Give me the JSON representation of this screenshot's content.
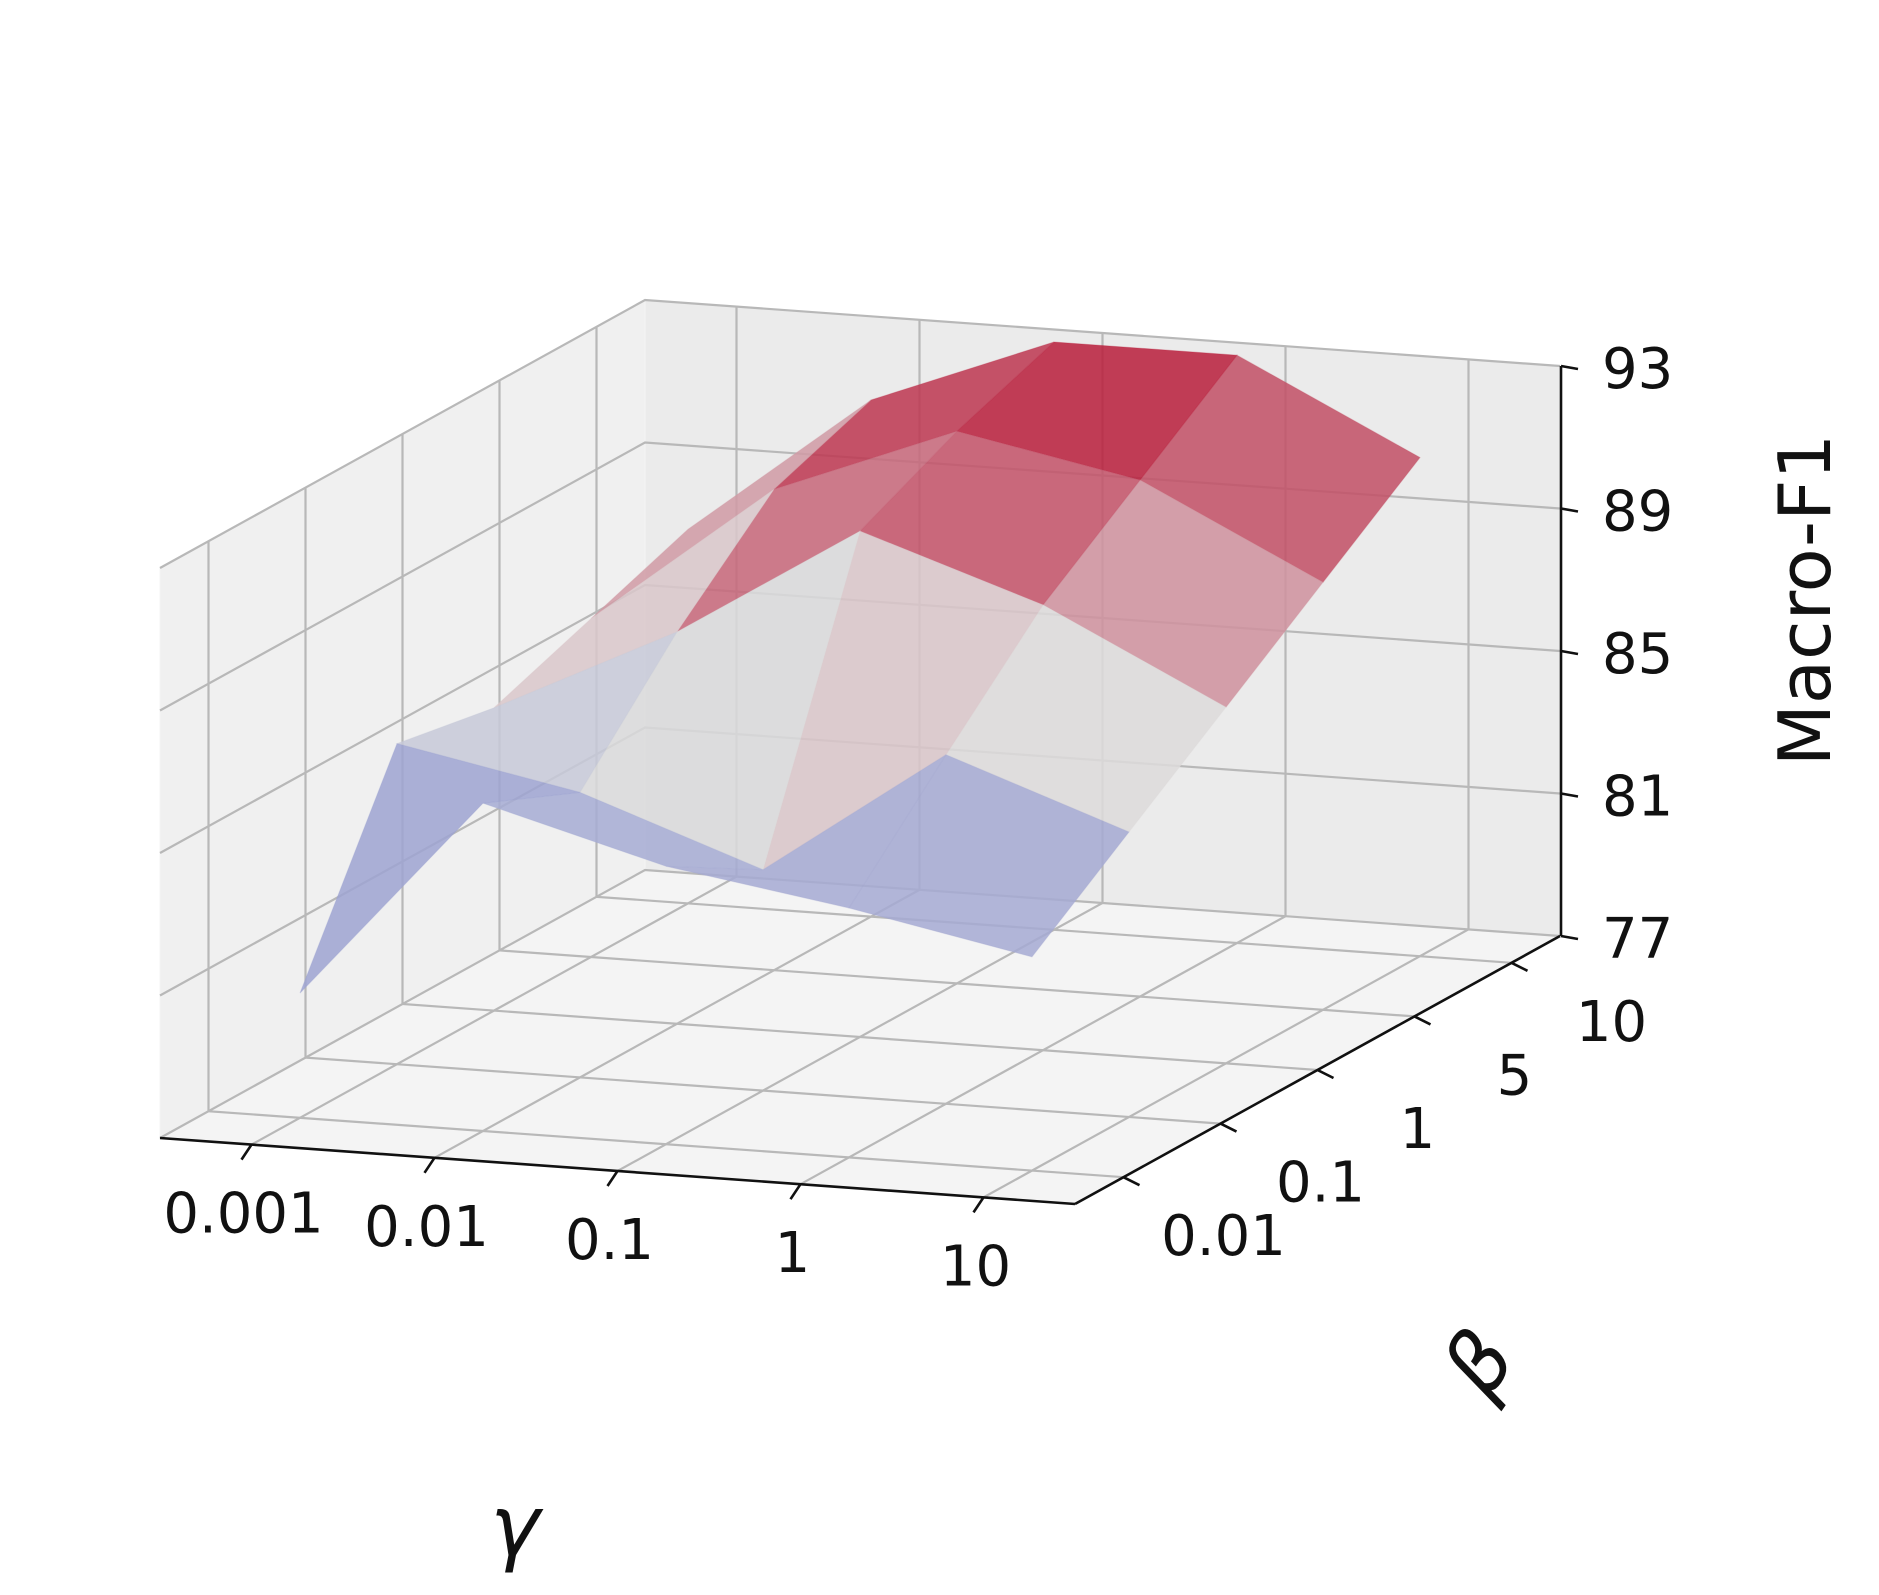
{
  "chart_data": {
    "type": "surface3d",
    "x_axis": {
      "label": "γ",
      "ticks": [
        "0.001",
        "0.01",
        "0.1",
        "1",
        "10"
      ]
    },
    "y_axis": {
      "label": "β",
      "ticks": [
        "0.01",
        "0.1",
        "1",
        "5",
        "10"
      ]
    },
    "z_axis": {
      "label": "Macro-F1",
      "ticks": [
        "77",
        "81",
        "85",
        "89",
        "93"
      ],
      "range": [
        77,
        93
      ]
    },
    "z": [
      [
        80.5,
        86.0,
        85.5,
        86.5,
        87.5
      ],
      [
        86.2,
        85.0,
        88.0,
        90.5,
        91.5
      ],
      [
        84.8,
        83.2,
        91.2,
        92.5,
        93.5
      ],
      [
        84.0,
        86.8,
        89.5,
        91.5,
        93.5
      ],
      [
        83.0,
        85.0,
        87.0,
        89.0,
        91.0
      ]
    ],
    "colormap": [
      "#3b4cc0",
      "#dddcdc",
      "#b40426"
    ],
    "grid": true
  }
}
